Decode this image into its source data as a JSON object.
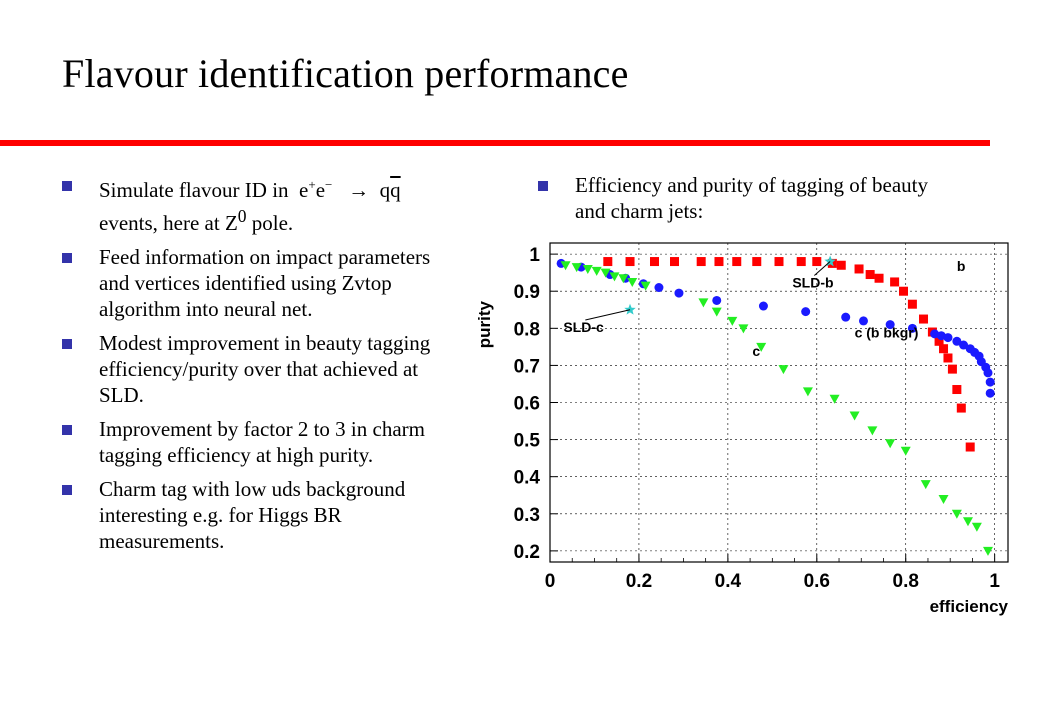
{
  "title": "Flavour identification performance",
  "left_bullets": {
    "b1_pre": "Simulate flavour ID in",
    "b1_e1": "e",
    "b1_e1_sup": "+",
    "b1_e2": "e",
    "b1_e2_sup": "−",
    "b1_arrow": "→",
    "b1_q": "q",
    "b1_qbar": "q",
    "b1_post_pre": "events, here at Z",
    "b1_post_sup": "0",
    "b1_post_end": " pole.",
    "b2": "Feed information on impact parameters and vertices identified using Zvtop algorithm into neural net.",
    "b3": "Modest improvement in beauty tagging efficiency/purity over that achieved at SLD.",
    "b4": "Improvement by factor 2 to 3 in charm tagging efficiency at high purity.",
    "b5": "Charm tag with low uds background interesting e.g. for Higgs BR measurements."
  },
  "right_bullets": {
    "b1": "Efficiency and purity of tagging of beauty and charm jets:"
  },
  "colors": {
    "rule": "#ff0000",
    "bullet": "#3333aa",
    "b_series": "#ff0000",
    "c_bkg_series": "#1a1aff",
    "c_series": "#22ee22",
    "sld": "#33cccc"
  },
  "chart_data": {
    "type": "scatter",
    "xlabel": "efficiency",
    "ylabel": "purity",
    "xlim": [
      0,
      1.03
    ],
    "ylim": [
      0.17,
      1.03
    ],
    "xticks": [
      0,
      0.2,
      0.4,
      0.6,
      0.8,
      1
    ],
    "xtick_labels": [
      "0",
      "0.2",
      "0.4",
      "0.6",
      "0.8",
      "1"
    ],
    "yticks": [
      0.2,
      0.3,
      0.4,
      0.5,
      0.6,
      0.7,
      0.8,
      0.9,
      1
    ],
    "ytick_labels": [
      "0.2",
      "0.3",
      "0.4",
      "0.5",
      "0.6",
      "0.7",
      "0.8",
      "0.9",
      "1"
    ],
    "grid": true,
    "series": [
      {
        "name": "b",
        "marker": "square",
        "x": [
          0.13,
          0.18,
          0.235,
          0.28,
          0.34,
          0.38,
          0.42,
          0.465,
          0.515,
          0.565,
          0.6,
          0.635,
          0.655,
          0.695,
          0.72,
          0.74,
          0.775,
          0.795,
          0.815,
          0.84,
          0.86,
          0.875,
          0.885,
          0.895,
          0.905,
          0.915,
          0.925,
          0.945
        ],
        "y": [
          0.98,
          0.98,
          0.98,
          0.98,
          0.98,
          0.98,
          0.98,
          0.98,
          0.98,
          0.98,
          0.98,
          0.975,
          0.97,
          0.96,
          0.945,
          0.935,
          0.925,
          0.9,
          0.865,
          0.825,
          0.79,
          0.765,
          0.745,
          0.72,
          0.69,
          0.635,
          0.585,
          0.48
        ]
      },
      {
        "name": "c (b bkgr)",
        "marker": "circle",
        "x": [
          0.025,
          0.07,
          0.135,
          0.17,
          0.21,
          0.245,
          0.29,
          0.375,
          0.48,
          0.575,
          0.665,
          0.705,
          0.765,
          0.815,
          0.865,
          0.88,
          0.895,
          0.915,
          0.93,
          0.945,
          0.955,
          0.965,
          0.97,
          0.98,
          0.985,
          0.99,
          0.99
        ],
        "y": [
          0.975,
          0.965,
          0.945,
          0.935,
          0.92,
          0.91,
          0.895,
          0.875,
          0.86,
          0.845,
          0.83,
          0.82,
          0.81,
          0.8,
          0.785,
          0.78,
          0.775,
          0.765,
          0.755,
          0.745,
          0.735,
          0.725,
          0.71,
          0.695,
          0.68,
          0.655,
          0.625
        ]
      },
      {
        "name": "c",
        "marker": "triangle-down",
        "x": [
          0.035,
          0.06,
          0.085,
          0.105,
          0.125,
          0.145,
          0.165,
          0.185,
          0.215,
          0.345,
          0.375,
          0.41,
          0.435,
          0.475,
          0.525,
          0.58,
          0.64,
          0.685,
          0.725,
          0.765,
          0.8,
          0.845,
          0.885,
          0.915,
          0.94,
          0.96,
          0.985
        ],
        "y": [
          0.97,
          0.965,
          0.96,
          0.955,
          0.95,
          0.94,
          0.935,
          0.925,
          0.915,
          0.87,
          0.845,
          0.82,
          0.8,
          0.75,
          0.69,
          0.63,
          0.61,
          0.565,
          0.525,
          0.49,
          0.47,
          0.38,
          0.34,
          0.3,
          0.28,
          0.265,
          0.2
        ]
      },
      {
        "name": "SLD",
        "marker": "star",
        "x": [
          0.18,
          0.63
        ],
        "y": [
          0.85,
          0.98
        ]
      }
    ],
    "annotations": [
      {
        "text": "b",
        "x": 0.915,
        "y": 0.955
      },
      {
        "text": "SLD-b",
        "x": 0.545,
        "y": 0.91,
        "arrow_to": [
          0.63,
          0.98
        ]
      },
      {
        "text": "SLD-c",
        "x": 0.03,
        "y": 0.79,
        "arrow_to": [
          0.18,
          0.85
        ]
      },
      {
        "text": "c",
        "x": 0.455,
        "y": 0.725
      },
      {
        "text": "c (b bkgr)",
        "x": 0.685,
        "y": 0.775
      }
    ]
  }
}
